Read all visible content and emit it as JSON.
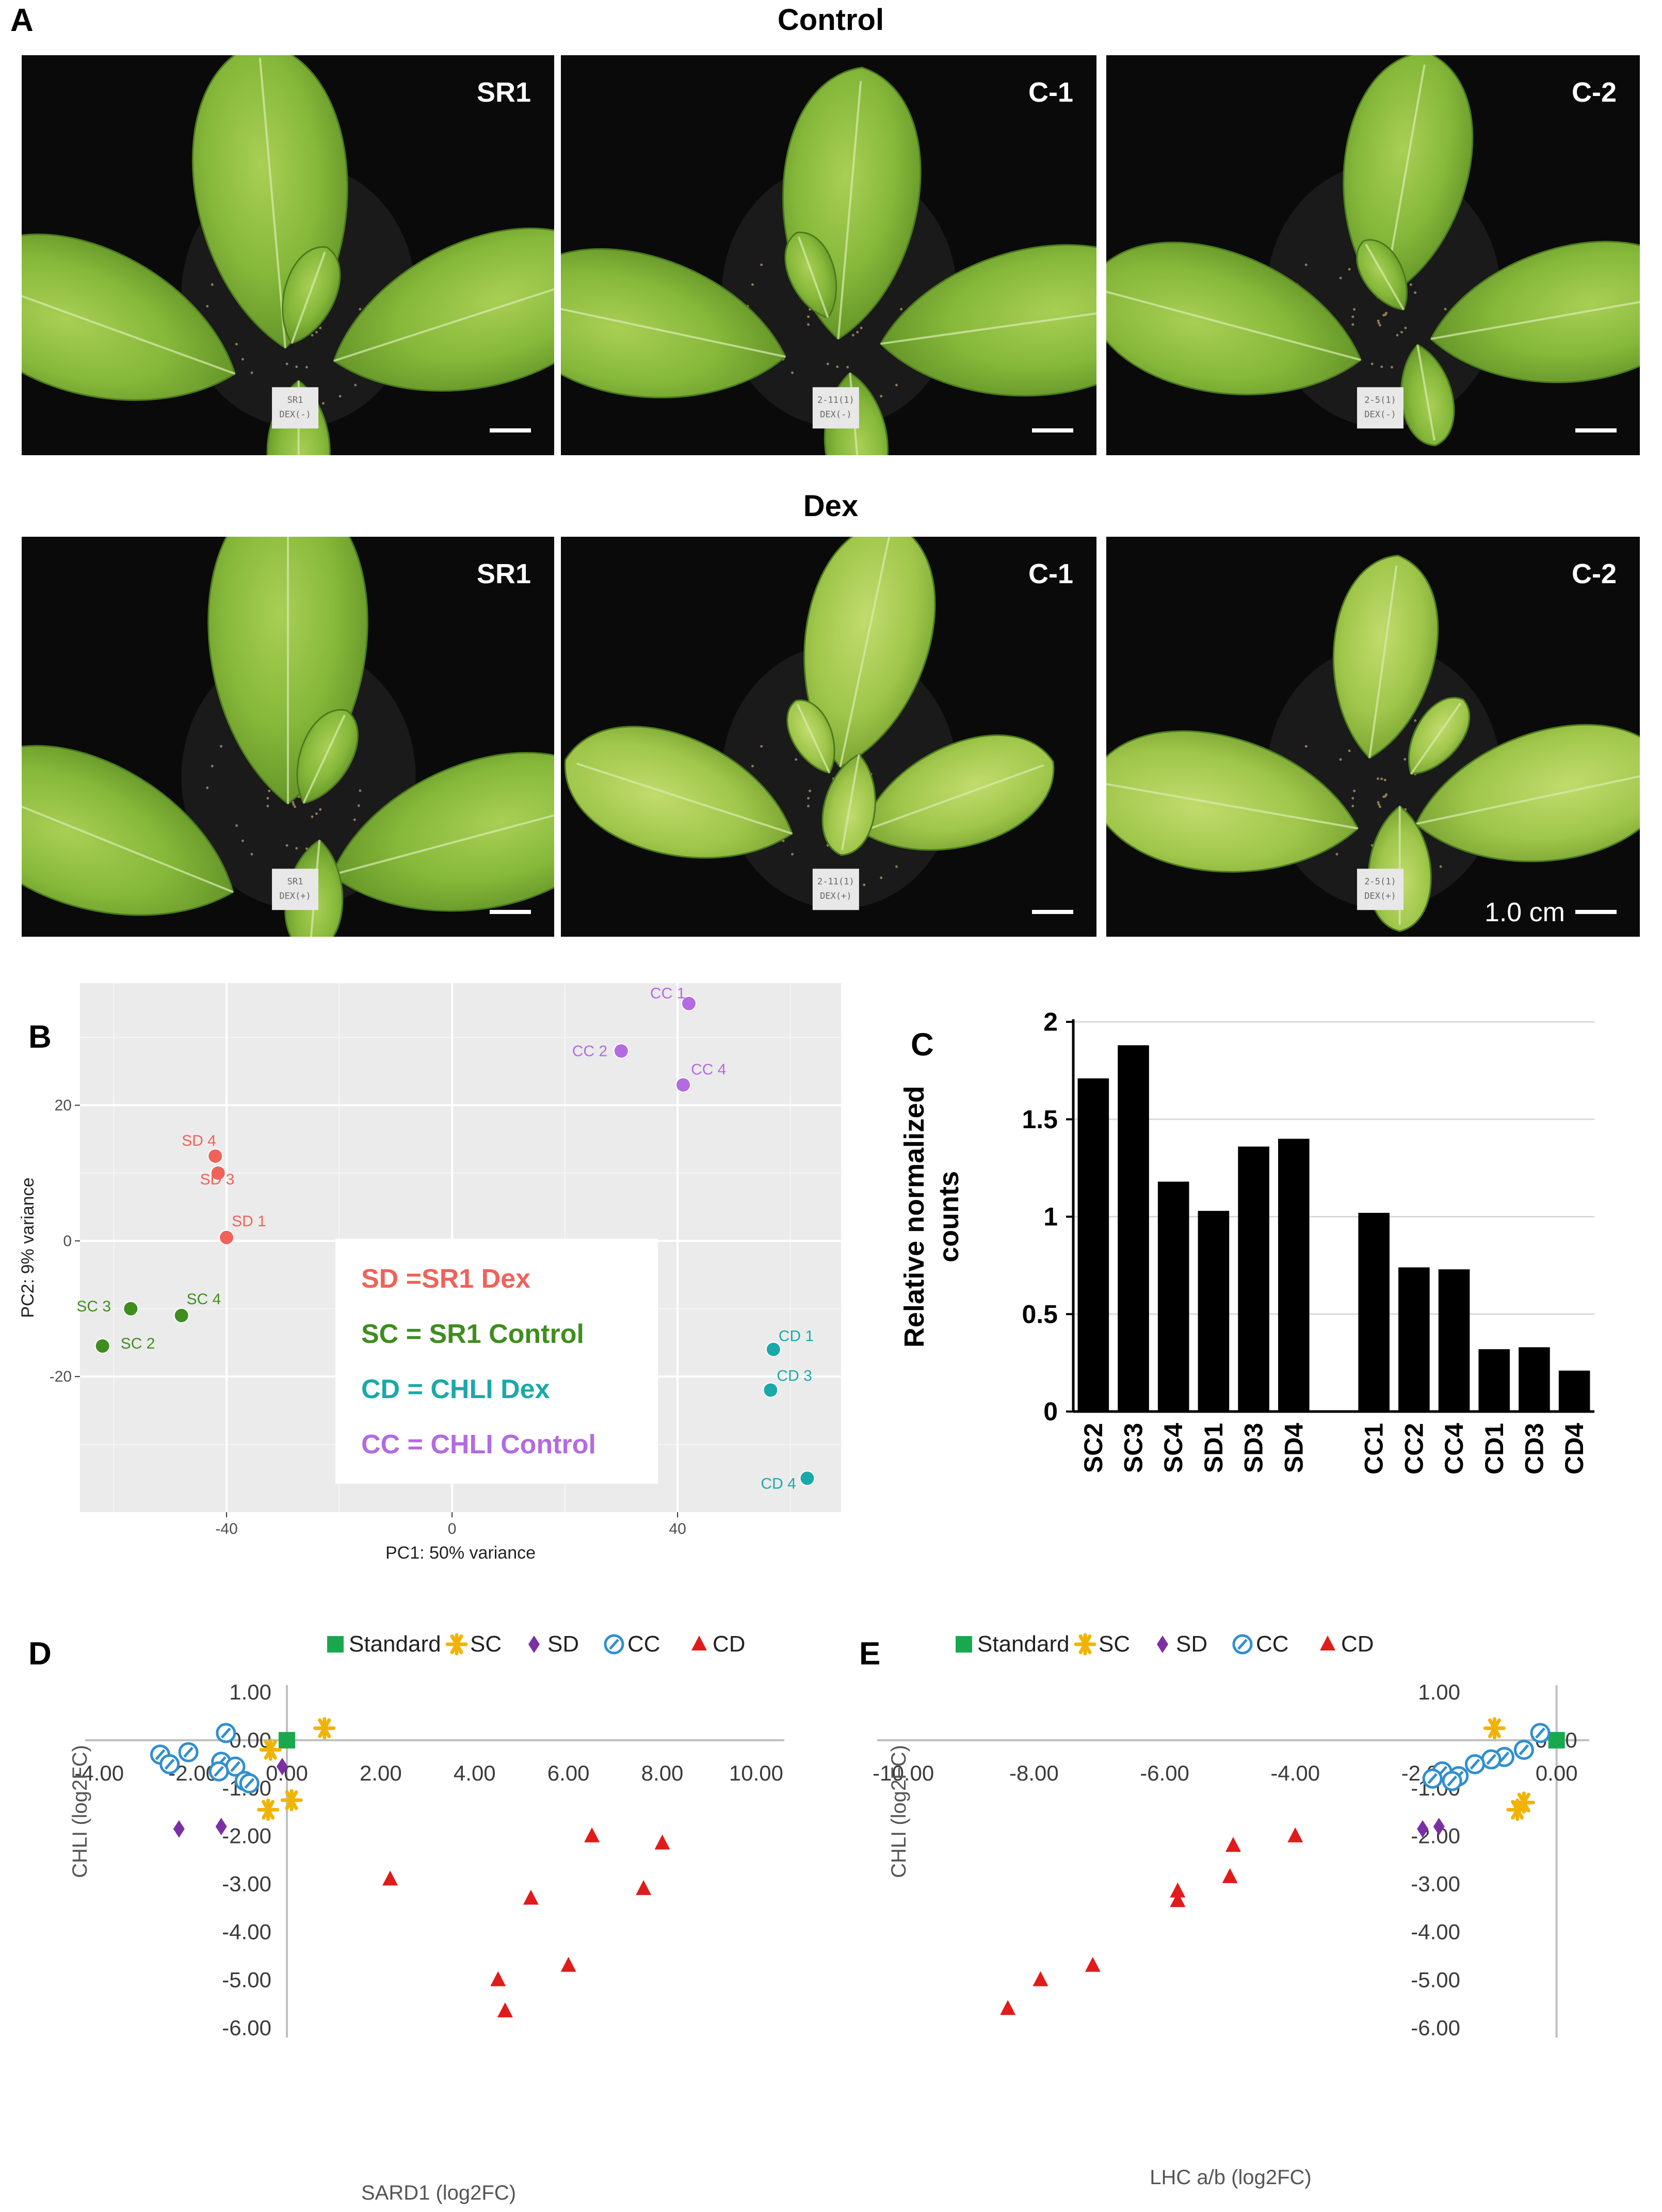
{
  "panelA": {
    "letter": "A",
    "rows": [
      {
        "title": "Control",
        "photos": [
          {
            "label": "SR1",
            "tag_lines": [
              "SR1",
              "DEX(-)"
            ]
          },
          {
            "label": "C-1",
            "tag_lines": [
              "2-11(1)",
              "DEX(-)"
            ]
          },
          {
            "label": "C-2",
            "tag_lines": [
              "2-5(1)",
              "DEX(-)"
            ]
          }
        ]
      },
      {
        "title": "Dex",
        "photos": [
          {
            "label": "SR1",
            "tag_lines": [
              "SR1",
              "DEX(+)"
            ]
          },
          {
            "label": "C-1",
            "tag_lines": [
              "2-11(1)",
              "DEX(+)"
            ]
          },
          {
            "label": "C-2",
            "tag_lines": [
              "2-5(1)",
              "DEX(+)"
            ]
          }
        ]
      }
    ],
    "scale_label": "1.0 cm"
  },
  "panelB": {
    "letter": "B",
    "xlabel": "PC1: 50% variance",
    "ylabel": "PC2: 9% variance",
    "xlim": [
      -66,
      69
    ],
    "ylim": [
      -40,
      38
    ],
    "xticks": [
      -40,
      0,
      40
    ],
    "yticks": [
      -20,
      0,
      20
    ],
    "colors": {
      "SD": "#f0625a",
      "SC": "#3f8d1f",
      "CD": "#1aa9a9",
      "CC": "#b36ae2"
    },
    "points": [
      {
        "group": "CC",
        "label": "CC 1",
        "x": 42,
        "y": 35
      },
      {
        "group": "CC",
        "label": "CC 2",
        "x": 30,
        "y": 28
      },
      {
        "group": "CC",
        "label": "CC 4",
        "x": 41,
        "y": 23
      },
      {
        "group": "SD",
        "label": "SD 4",
        "x": -42,
        "y": 12.5
      },
      {
        "group": "SD",
        "label": "SD 3",
        "x": -41.5,
        "y": 10
      },
      {
        "group": "SD",
        "label": "SD 1",
        "x": -40,
        "y": 0.5
      },
      {
        "group": "SC",
        "label": "SC 3",
        "x": -57,
        "y": -10
      },
      {
        "group": "SC",
        "label": "SC 4",
        "x": -48,
        "y": -11
      },
      {
        "group": "SC",
        "label": "SC 2",
        "x": -62,
        "y": -15.5
      },
      {
        "group": "CD",
        "label": "CD 1",
        "x": 57,
        "y": -16
      },
      {
        "group": "CD",
        "label": "CD 3",
        "x": 56.5,
        "y": -22
      },
      {
        "group": "CD",
        "label": "CD 4",
        "x": 63,
        "y": -35
      }
    ],
    "legend": [
      {
        "group": "SD",
        "text": "SD =SR1 Dex"
      },
      {
        "group": "SC",
        "text": "SC = SR1 Control"
      },
      {
        "group": "CD",
        "text": "CD = CHLI Dex"
      },
      {
        "group": "CC",
        "text": "CC = CHLI Control"
      }
    ]
  },
  "chart_data": [
    {
      "type": "bar",
      "panel": "C",
      "ylabel_lines": [
        "Relative normalized",
        "counts"
      ],
      "ylim": [
        0,
        2
      ],
      "yticks": [
        0,
        0.5,
        1,
        1.5,
        2
      ],
      "grid": true,
      "categories": [
        "SC2",
        "SC3",
        "SC4",
        "SD1",
        "SD3",
        "SD4",
        "",
        "CC1",
        "CC2",
        "CC4",
        "CD1",
        "CD3",
        "CD4"
      ],
      "values": [
        1.71,
        1.88,
        1.18,
        1.03,
        1.36,
        1.4,
        null,
        1.02,
        0.74,
        0.73,
        0.32,
        0.33,
        0.21
      ]
    },
    {
      "type": "scatter",
      "panel": "D",
      "xlabel": "SARD1 (log2FC)",
      "ylabel": "CHLI (log2FC)",
      "xlim": [
        -4.3,
        10.6
      ],
      "ylim": [
        -6.2,
        1.15
      ],
      "xticks": [
        "-4.00",
        "-2.00",
        "0.00",
        "2.00",
        "4.00",
        "6.00",
        "8.00",
        "10.00"
      ],
      "yticks": [
        "1.00",
        "0.00",
        "-1.00",
        "-2.00",
        "-3.00",
        "-4.00",
        "-5.00",
        "-6.00"
      ],
      "series": [
        {
          "name": "Standard",
          "marker": "square",
          "color": "#1aa84f",
          "points": [
            [
              0,
              0
            ]
          ]
        },
        {
          "name": "SC",
          "marker": "asterisk",
          "color": "#f0b400",
          "points": [
            [
              0.8,
              0.25
            ],
            [
              -0.35,
              -0.2
            ],
            [
              0.1,
              -1.25
            ],
            [
              -0.4,
              -1.45
            ]
          ]
        },
        {
          "name": "SD",
          "marker": "diamond",
          "color": "#7b2fa3",
          "points": [
            [
              -0.1,
              -0.55
            ],
            [
              -2.3,
              -1.85
            ],
            [
              -1.4,
              -1.8
            ]
          ]
        },
        {
          "name": "CC",
          "marker": "hatched-circle",
          "color": "#2f8fd0",
          "points": [
            [
              -1.3,
              0.15
            ],
            [
              -2.1,
              -0.25
            ],
            [
              -2.7,
              -0.3
            ],
            [
              -2.5,
              -0.5
            ],
            [
              -1.4,
              -0.45
            ],
            [
              -1.1,
              -0.55
            ],
            [
              -0.9,
              -0.85
            ],
            [
              -0.8,
              -0.9
            ],
            [
              -1.45,
              -0.65
            ]
          ]
        },
        {
          "name": "CD",
          "marker": "triangle",
          "color": "#e11b1b",
          "points": [
            [
              2.2,
              -2.9
            ],
            [
              4.5,
              -5.0
            ],
            [
              4.65,
              -5.65
            ],
            [
              5.2,
              -3.3
            ],
            [
              6.0,
              -4.7
            ],
            [
              6.5,
              -2.0
            ],
            [
              7.6,
              -3.1
            ],
            [
              8.0,
              -2.15
            ]
          ]
        }
      ]
    },
    {
      "type": "scatter",
      "panel": "E",
      "xlabel": "LHC a/b (log2FC)",
      "ylabel": "CHLI (log2FC)",
      "xlim": [
        -10.4,
        0.5
      ],
      "ylim": [
        -6.2,
        1.15
      ],
      "xticks": [
        "-10.00",
        "-8.00",
        "-6.00",
        "-4.00",
        "-2.00",
        "0.00"
      ],
      "yticks": [
        "1.00",
        "0.00",
        "-1.00",
        "-2.00",
        "-3.00",
        "-4.00",
        "-5.00",
        "-6.00"
      ],
      "series": [
        {
          "name": "Standard",
          "marker": "square",
          "color": "#1aa84f",
          "points": [
            [
              0,
              0
            ]
          ]
        },
        {
          "name": "SC",
          "marker": "asterisk",
          "color": "#f0b400",
          "points": [
            [
              -0.95,
              0.25
            ],
            [
              -0.5,
              -1.3
            ],
            [
              -0.6,
              -1.45
            ]
          ]
        },
        {
          "name": "SD",
          "marker": "diamond",
          "color": "#7b2fa3",
          "points": [
            [
              -2.05,
              -1.85
            ],
            [
              -1.8,
              -1.8
            ]
          ]
        },
        {
          "name": "CC",
          "marker": "hatched-circle",
          "color": "#2f8fd0",
          "points": [
            [
              -0.25,
              0.15
            ],
            [
              -0.5,
              -0.2
            ],
            [
              -0.8,
              -0.35
            ],
            [
              -1.0,
              -0.4
            ],
            [
              -1.25,
              -0.5
            ],
            [
              -1.5,
              -0.75
            ],
            [
              -1.75,
              -0.65
            ],
            [
              -1.6,
              -0.85
            ],
            [
              -1.9,
              -0.8
            ]
          ]
        },
        {
          "name": "CD",
          "marker": "triangle",
          "color": "#e11b1b",
          "points": [
            [
              -8.4,
              -5.6
            ],
            [
              -7.9,
              -5.0
            ],
            [
              -7.1,
              -4.7
            ],
            [
              -5.8,
              -3.15
            ],
            [
              -5.8,
              -3.35
            ],
            [
              -4.95,
              -2.2
            ],
            [
              -5.0,
              -2.85
            ],
            [
              -4.0,
              -2.0
            ]
          ]
        }
      ]
    }
  ],
  "panelC": {
    "letter": "C"
  },
  "panelD": {
    "letter": "D"
  },
  "panelE": {
    "letter": "E"
  }
}
